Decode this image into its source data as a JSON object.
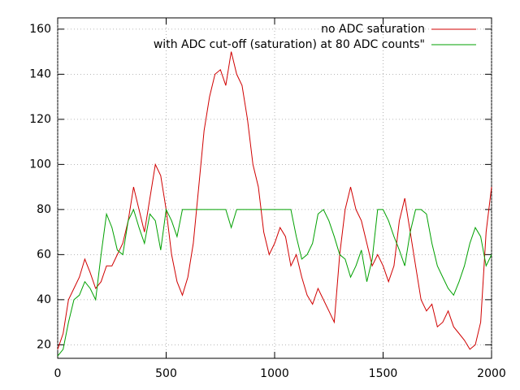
{
  "chart_data": {
    "type": "line",
    "x": [
      0,
      25,
      50,
      75,
      100,
      125,
      150,
      175,
      200,
      225,
      250,
      275,
      300,
      325,
      350,
      375,
      400,
      425,
      450,
      475,
      500,
      525,
      550,
      575,
      600,
      625,
      650,
      675,
      700,
      725,
      750,
      775,
      800,
      825,
      850,
      875,
      900,
      925,
      950,
      975,
      1000,
      1025,
      1050,
      1075,
      1100,
      1125,
      1150,
      1175,
      1200,
      1225,
      1250,
      1275,
      1300,
      1325,
      1350,
      1375,
      1400,
      1425,
      1450,
      1475,
      1500,
      1525,
      1550,
      1575,
      1600,
      1625,
      1650,
      1675,
      1700,
      1725,
      1750,
      1775,
      1800,
      1825,
      1850,
      1875,
      1900,
      1925,
      1950,
      1975,
      2000
    ],
    "series": [
      {
        "name": "no ADC saturation",
        "color": "#d00000",
        "values": [
          18,
          25,
          40,
          45,
          50,
          58,
          52,
          45,
          48,
          55,
          55,
          60,
          65,
          75,
          90,
          80,
          70,
          85,
          100,
          95,
          80,
          60,
          48,
          42,
          50,
          65,
          90,
          115,
          130,
          140,
          142,
          135,
          150,
          140,
          135,
          120,
          100,
          90,
          70,
          60,
          65,
          72,
          68,
          55,
          60,
          50,
          42,
          38,
          45,
          40,
          35,
          30,
          60,
          80,
          90,
          80,
          75,
          65,
          55,
          60,
          55,
          48,
          55,
          75,
          85,
          70,
          55,
          40,
          35,
          38,
          28,
          30,
          35,
          28,
          25,
          22,
          18,
          20,
          30,
          70,
          90
        ]
      },
      {
        "name": "with ADC cut-off (saturation) at 80 ADC counts\"",
        "color": "#00a000",
        "values": [
          15,
          18,
          30,
          40,
          42,
          48,
          45,
          40,
          60,
          78,
          72,
          62,
          60,
          75,
          80,
          72,
          65,
          78,
          75,
          62,
          80,
          75,
          68,
          80,
          80,
          80,
          80,
          80,
          80,
          80,
          80,
          80,
          72,
          80,
          80,
          80,
          80,
          80,
          80,
          80,
          80,
          80,
          80,
          80,
          68,
          58,
          60,
          65,
          78,
          80,
          75,
          68,
          60,
          58,
          50,
          55,
          62,
          48,
          58,
          80,
          80,
          75,
          68,
          62,
          55,
          70,
          80,
          80,
          78,
          65,
          55,
          50,
          45,
          42,
          48,
          55,
          65,
          72,
          68,
          55,
          60
        ]
      }
    ],
    "xlim": [
      0,
      2000
    ],
    "ylim": [
      14,
      165
    ],
    "xticks": [
      0,
      500,
      1000,
      1500,
      2000
    ],
    "yticks": [
      20,
      40,
      60,
      80,
      100,
      120,
      140,
      160
    ],
    "grid": true,
    "legend": "top-right"
  }
}
